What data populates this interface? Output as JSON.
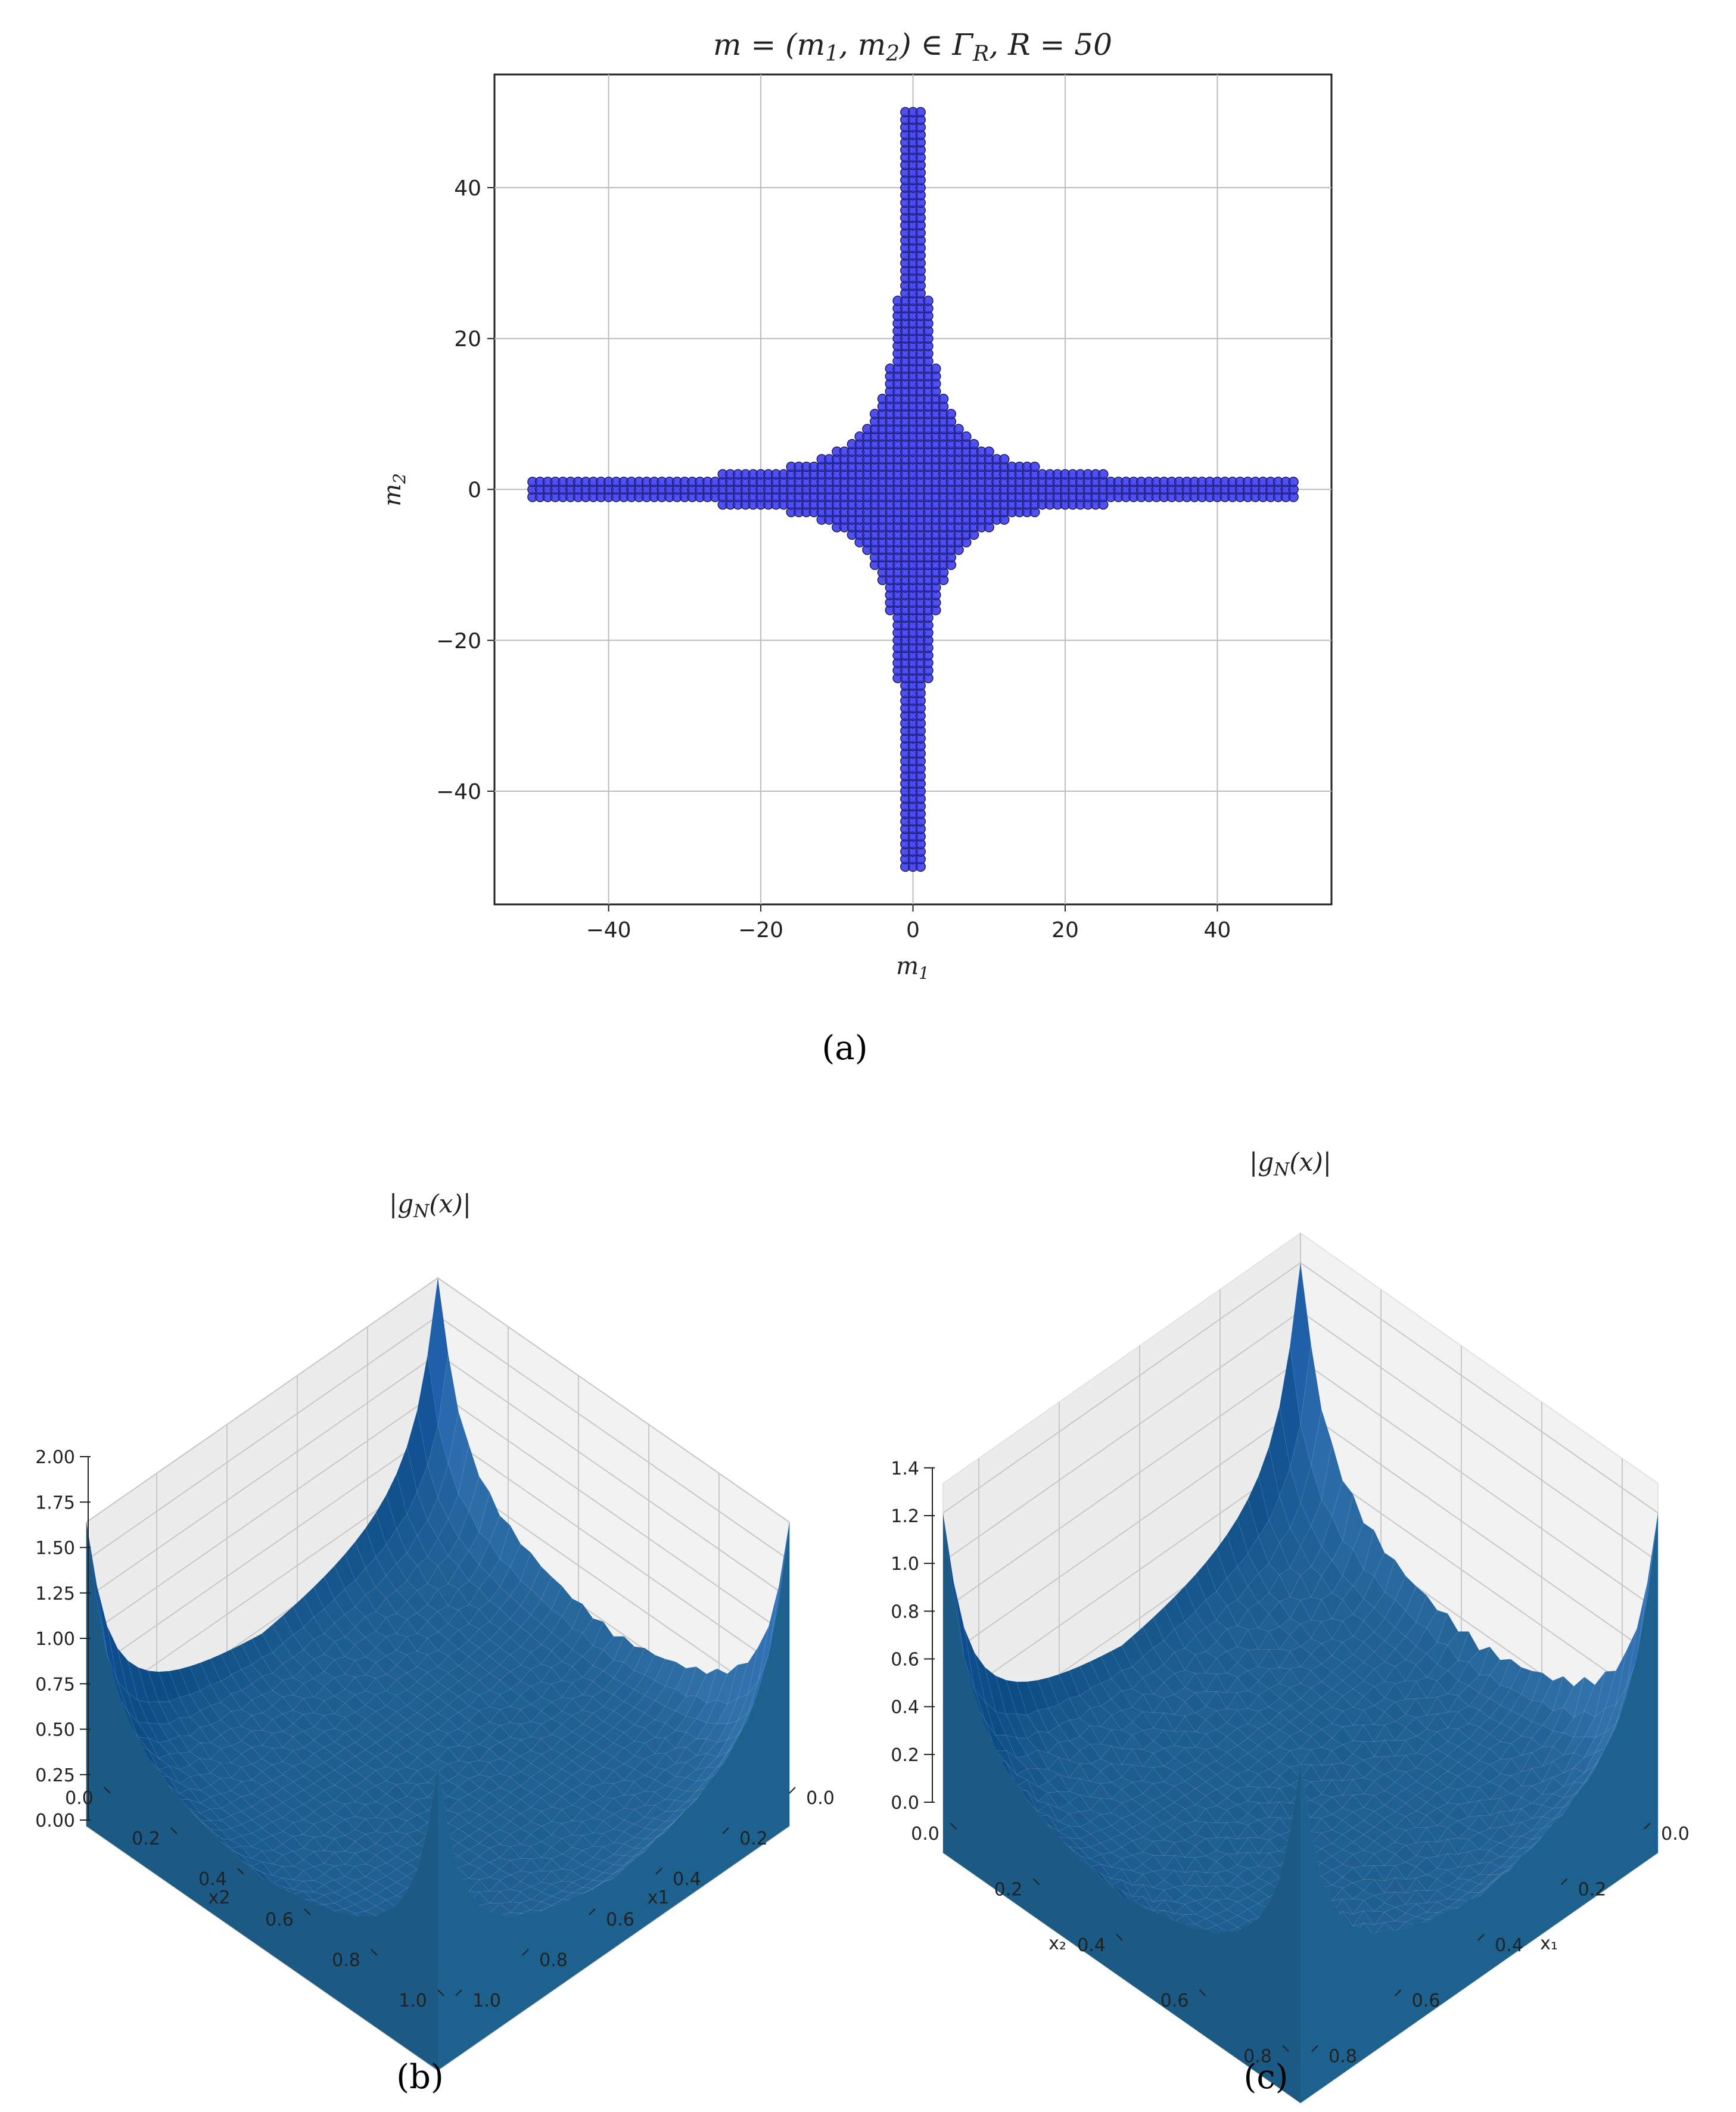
{
  "chart_data": [
    {
      "panel": "a",
      "type": "scatter",
      "title": "m = (m1, m2) ∈ ΓR, R = 50",
      "xlabel": "m1",
      "ylabel": "m2",
      "xlim": [
        -55,
        55
      ],
      "ylim": [
        -55,
        55
      ],
      "xticks": [
        -40,
        -20,
        0,
        20,
        40
      ],
      "yticks": [
        -40,
        -20,
        0,
        20,
        40
      ],
      "xtick_labels": [
        "−40",
        "−20",
        "0",
        "20",
        "40"
      ],
      "ytick_labels": [
        "−40",
        "−20",
        "0",
        "20",
        "40"
      ],
      "grid": true,
      "marker_color": "#3333ee",
      "marker_edge": "#1a1a5a",
      "point_rule": "integer points (m1, m2) with max(1,|m1|)·max(1,|m2|) ≤ R",
      "R": 50
    },
    {
      "panel": "b",
      "type": "surface3d",
      "title": "|gN(x)|",
      "xlabel": "x1",
      "ylabel": "x2",
      "x_ticks": [
        "0.0",
        "0.2",
        "0.4",
        "0.6",
        "0.8",
        "1.0"
      ],
      "y_ticks": [
        "0.0",
        "0.2",
        "0.4",
        "0.6",
        "0.8",
        "1.0"
      ],
      "z_ticks": [
        "0.00",
        "0.25",
        "0.50",
        "0.75",
        "1.00",
        "1.25",
        "1.50",
        "1.75",
        "2.00"
      ],
      "zlim": [
        0,
        2.0
      ],
      "surface_color": "#1f5f8b",
      "peak_value": 2.0,
      "base_value": 0.4
    },
    {
      "panel": "c",
      "type": "surface3d",
      "title": "|gN(x)|",
      "xlabel": "x1",
      "ylabel": "x2",
      "x_ticks": [
        "0.0",
        "0.2",
        "0.4",
        "0.6",
        "0.8"
      ],
      "y_ticks": [
        "0.0",
        "0.2",
        "0.4",
        "0.6",
        "0.8"
      ],
      "z_ticks": [
        "0.0",
        "0.2",
        "0.4",
        "0.6",
        "0.8",
        "1.0",
        "1.2",
        "1.4"
      ],
      "zlim": [
        0,
        1.4
      ],
      "surface_color": "#1f5f8b",
      "peak_value": 1.4,
      "base_value": 0.3
    }
  ],
  "captions": {
    "a": "(a)",
    "b": "(b)",
    "c": "(c)"
  }
}
